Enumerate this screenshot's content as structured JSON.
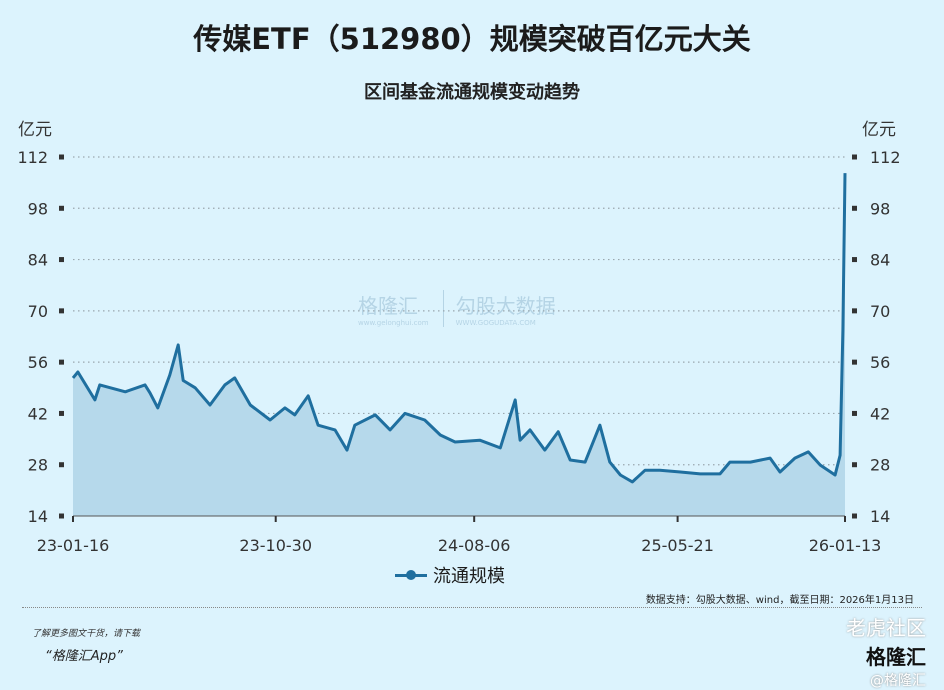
{
  "chart_data": {
    "type": "area",
    "title": "传媒ETF（512980）规模突破百亿元大关",
    "subtitle": "区间基金流通规模变动趋势",
    "ylabel_left": "亿元",
    "ylabel_right": "亿元",
    "ylim": [
      14,
      112
    ],
    "yticks": [
      14,
      28,
      42,
      56,
      70,
      84,
      98,
      112
    ],
    "xlim": [
      "2023-01-16",
      "2026-01-13"
    ],
    "xticks": [
      "23-01-16",
      "23-10-30",
      "24-08-06",
      "25-05-21",
      "26-01-13"
    ],
    "xtick_dates": [
      "2023-01-16",
      "2023-10-30",
      "2024-08-06",
      "2025-05-21",
      "2026-01-13"
    ],
    "grid": "horizontal dotted",
    "legend_placement": "bottom",
    "line_color": "#1f6f9f",
    "fill_color": "#b6d9eb",
    "series": [
      {
        "name": "流通规模",
        "x": [
          "2023-01-16",
          "2023-01-23",
          "2023-02-16",
          "2023-02-23",
          "2023-03-31",
          "2023-04-28",
          "2023-05-05",
          "2023-05-16",
          "2023-06-02",
          "2023-06-14",
          "2023-06-21",
          "2023-07-08",
          "2023-07-29",
          "2023-08-19",
          "2023-09-02",
          "2023-09-24",
          "2023-10-22",
          "2023-11-12",
          "2023-11-26",
          "2023-12-15",
          "2023-12-29",
          "2024-01-22",
          "2024-02-08",
          "2024-02-19",
          "2024-03-19",
          "2024-04-09",
          "2024-04-30",
          "2024-05-28",
          "2024-06-19",
          "2024-07-10",
          "2024-08-14",
          "2024-09-12",
          "2024-10-03",
          "2024-10-10",
          "2024-10-24",
          "2024-11-14",
          "2024-12-03",
          "2024-12-20",
          "2025-01-10",
          "2025-01-31",
          "2025-02-14",
          "2025-03-01",
          "2025-03-18",
          "2025-04-05",
          "2025-04-26",
          "2025-05-25",
          "2025-06-22",
          "2025-07-20",
          "2025-08-03",
          "2025-09-01",
          "2025-09-29",
          "2025-10-13",
          "2025-11-03",
          "2025-11-22",
          "2025-12-09",
          "2025-12-30",
          "2026-01-06",
          "2026-01-10",
          "2026-01-13"
        ],
        "values": [
          51.7,
          53.3,
          45.7,
          49.8,
          47.9,
          49.8,
          47.6,
          43.5,
          52.5,
          60.7,
          51.0,
          49.0,
          44.3,
          49.8,
          51.7,
          44.3,
          40.2,
          43.5,
          41.6,
          46.8,
          38.8,
          37.5,
          32.0,
          38.8,
          41.6,
          37.5,
          42.0,
          40.2,
          36.1,
          34.2,
          34.7,
          32.6,
          45.7,
          34.7,
          37.5,
          32.0,
          37.0,
          29.3,
          28.7,
          38.8,
          28.7,
          25.2,
          23.3,
          26.5,
          26.5,
          26.0,
          25.5,
          25.5,
          28.7,
          28.7,
          29.8,
          26.0,
          29.8,
          31.5,
          27.9,
          25.2,
          30.6,
          64.8,
          107.6
        ]
      }
    ]
  },
  "legend": {
    "label": "流通规模"
  },
  "source": "数据支持：勾股大数据、wind，截至日期：2026年1月13日",
  "footer": {
    "line1": "了解更多图文干货，请下载",
    "line2": "“格隆汇App”"
  },
  "watermark": {
    "brand": "格隆汇",
    "brand_url": "www.gelonghui.com",
    "partner": "勾股大数据",
    "partner_url": "WWW.GOGUDATA.COM"
  },
  "corner": {
    "community": "老虎社区",
    "brand": "格隆汇",
    "handle": "@格隆汇"
  }
}
